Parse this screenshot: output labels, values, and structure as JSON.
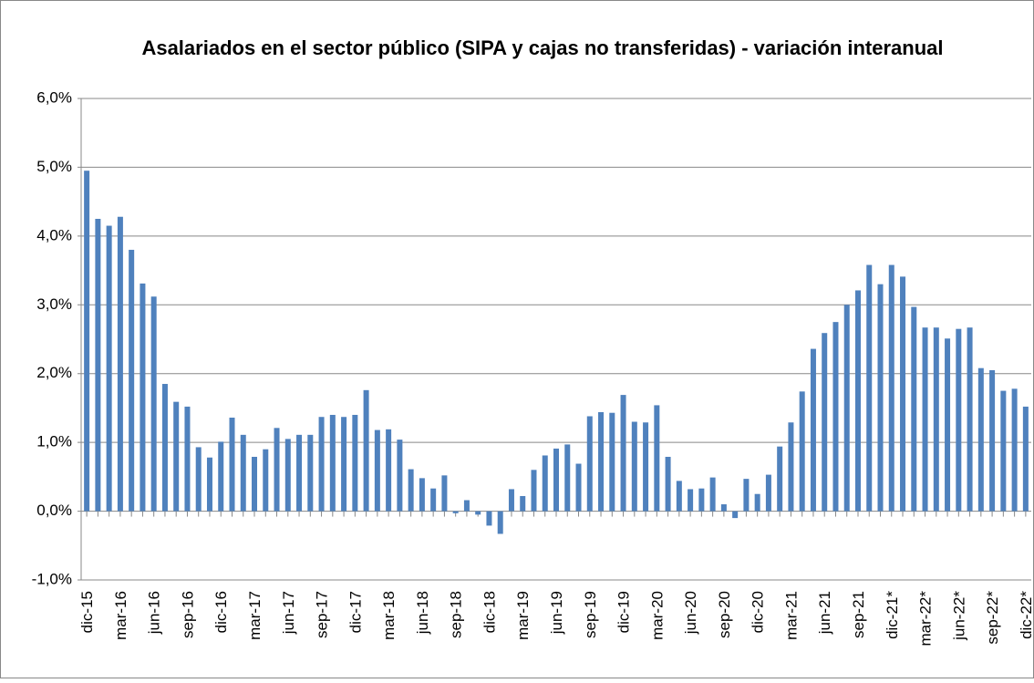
{
  "chart_data": {
    "type": "bar",
    "title": "Asalariados en el sector público (SIPA y cajas no transferidas) - variación interanual",
    "categories": [
      "dic-15",
      null,
      null,
      "mar-16",
      null,
      null,
      "jun-16",
      null,
      null,
      "sep-16",
      null,
      null,
      "dic-16",
      null,
      null,
      "mar-17",
      null,
      null,
      "jun-17",
      null,
      null,
      "sep-17",
      null,
      null,
      "dic-17",
      null,
      null,
      "mar-18",
      null,
      null,
      "jun-18",
      null,
      null,
      "sep-18",
      null,
      null,
      "dic-18",
      null,
      null,
      "mar-19",
      null,
      null,
      "jun-19",
      null,
      null,
      "sep-19",
      null,
      null,
      "dic-19",
      null,
      null,
      "mar-20",
      null,
      null,
      "jun-20",
      null,
      null,
      "sep-20",
      null,
      null,
      "dic-20",
      null,
      null,
      "mar-21",
      null,
      null,
      "jun-21",
      null,
      null,
      "sep-21",
      null,
      null,
      "dic-21*",
      null,
      null,
      "mar-22*",
      null,
      null,
      "jun-22*",
      null,
      null,
      "sep-22*",
      null,
      null,
      "dic-22*"
    ],
    "values": [
      4.95,
      4.25,
      4.15,
      4.28,
      3.8,
      3.31,
      3.12,
      1.85,
      1.59,
      1.52,
      0.93,
      0.78,
      1.01,
      1.36,
      1.11,
      0.79,
      0.9,
      1.21,
      1.05,
      1.11,
      1.11,
      1.37,
      1.4,
      1.37,
      1.4,
      1.76,
      1.18,
      1.19,
      1.04,
      0.61,
      0.48,
      0.33,
      0.52,
      -0.03,
      0.16,
      -0.05,
      -0.21,
      -0.33,
      0.32,
      0.22,
      0.6,
      0.81,
      0.91,
      0.97,
      0.69,
      1.38,
      1.44,
      1.43,
      1.69,
      1.3,
      1.29,
      1.54,
      0.79,
      0.44,
      0.32,
      0.33,
      0.49,
      0.1,
      -0.1,
      0.47,
      0.25,
      0.53,
      0.94,
      1.29,
      1.74,
      2.36,
      2.59,
      2.75,
      3.0,
      3.21,
      3.58,
      3.3,
      3.58,
      3.41,
      2.97,
      2.67,
      2.67,
      2.51,
      2.65,
      2.67,
      2.08,
      2.05,
      1.75,
      1.78,
      1.52
    ],
    "color": "#4f81bd",
    "ylim": [
      -1,
      6
    ],
    "yticks": [
      {
        "value": -1,
        "label": "-1,0%"
      },
      {
        "value": 0,
        "label": "0,0%"
      },
      {
        "value": 1,
        "label": "1,0%"
      },
      {
        "value": 2,
        "label": "2,0%"
      },
      {
        "value": 3,
        "label": "3,0%"
      },
      {
        "value": 4,
        "label": "4,0%"
      },
      {
        "value": 5,
        "label": "5,0%"
      },
      {
        "value": 6,
        "label": "6,0%"
      }
    ],
    "grid": true
  }
}
